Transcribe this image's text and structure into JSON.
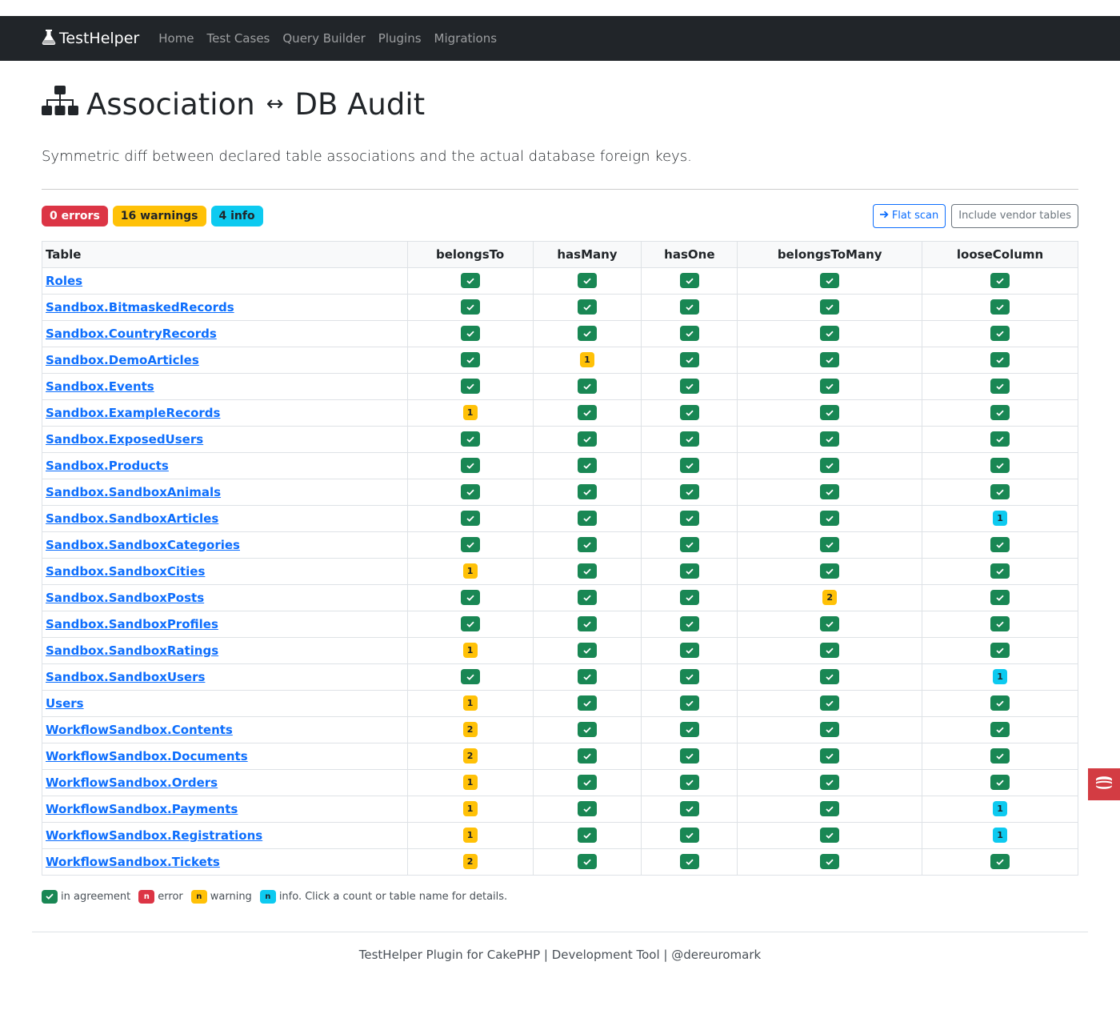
{
  "nav": {
    "brand": "TestHelper",
    "links": [
      "Home",
      "Test Cases",
      "Query Builder",
      "Plugins",
      "Migrations"
    ]
  },
  "header": {
    "title_left": "Association",
    "title_arrow": "↔",
    "title_right": "DB Audit",
    "lead": "Symmetric diff between declared table associations and the actual database foreign keys."
  },
  "summary": {
    "errors": "0 errors",
    "warnings": "16 warnings",
    "info": "4 info"
  },
  "buttons": {
    "flat_scan": "Flat scan",
    "vendor": "Include vendor tables"
  },
  "table": {
    "columns": [
      "Table",
      "belongsTo",
      "hasMany",
      "hasOne",
      "belongsToMany",
      "looseColumn"
    ],
    "rows": [
      {
        "name": "Roles",
        "cells": [
          "ok",
          "ok",
          "ok",
          "ok",
          "ok"
        ]
      },
      {
        "name": "Sandbox.BitmaskedRecords",
        "cells": [
          "ok",
          "ok",
          "ok",
          "ok",
          "ok"
        ]
      },
      {
        "name": "Sandbox.CountryRecords",
        "cells": [
          "ok",
          "ok",
          "ok",
          "ok",
          "ok"
        ]
      },
      {
        "name": "Sandbox.DemoArticles",
        "cells": [
          "ok",
          "w1",
          "ok",
          "ok",
          "ok"
        ]
      },
      {
        "name": "Sandbox.Events",
        "cells": [
          "ok",
          "ok",
          "ok",
          "ok",
          "ok"
        ]
      },
      {
        "name": "Sandbox.ExampleRecords",
        "cells": [
          "w1",
          "ok",
          "ok",
          "ok",
          "ok"
        ]
      },
      {
        "name": "Sandbox.ExposedUsers",
        "cells": [
          "ok",
          "ok",
          "ok",
          "ok",
          "ok"
        ]
      },
      {
        "name": "Sandbox.Products",
        "cells": [
          "ok",
          "ok",
          "ok",
          "ok",
          "ok"
        ]
      },
      {
        "name": "Sandbox.SandboxAnimals",
        "cells": [
          "ok",
          "ok",
          "ok",
          "ok",
          "ok"
        ]
      },
      {
        "name": "Sandbox.SandboxArticles",
        "cells": [
          "ok",
          "ok",
          "ok",
          "ok",
          "i1"
        ]
      },
      {
        "name": "Sandbox.SandboxCategories",
        "cells": [
          "ok",
          "ok",
          "ok",
          "ok",
          "ok"
        ]
      },
      {
        "name": "Sandbox.SandboxCities",
        "cells": [
          "w1",
          "ok",
          "ok",
          "ok",
          "ok"
        ]
      },
      {
        "name": "Sandbox.SandboxPosts",
        "cells": [
          "ok",
          "ok",
          "ok",
          "w2",
          "ok"
        ]
      },
      {
        "name": "Sandbox.SandboxProfiles",
        "cells": [
          "ok",
          "ok",
          "ok",
          "ok",
          "ok"
        ]
      },
      {
        "name": "Sandbox.SandboxRatings",
        "cells": [
          "w1",
          "ok",
          "ok",
          "ok",
          "ok"
        ]
      },
      {
        "name": "Sandbox.SandboxUsers",
        "cells": [
          "ok",
          "ok",
          "ok",
          "ok",
          "i1"
        ]
      },
      {
        "name": "Users",
        "cells": [
          "w1",
          "ok",
          "ok",
          "ok",
          "ok"
        ]
      },
      {
        "name": "WorkflowSandbox.Contents",
        "cells": [
          "w2",
          "ok",
          "ok",
          "ok",
          "ok"
        ]
      },
      {
        "name": "WorkflowSandbox.Documents",
        "cells": [
          "w2",
          "ok",
          "ok",
          "ok",
          "ok"
        ]
      },
      {
        "name": "WorkflowSandbox.Orders",
        "cells": [
          "w1",
          "ok",
          "ok",
          "ok",
          "ok"
        ]
      },
      {
        "name": "WorkflowSandbox.Payments",
        "cells": [
          "w1",
          "ok",
          "ok",
          "ok",
          "i1"
        ]
      },
      {
        "name": "WorkflowSandbox.Registrations",
        "cells": [
          "w1",
          "ok",
          "ok",
          "ok",
          "i1"
        ]
      },
      {
        "name": "WorkflowSandbox.Tickets",
        "cells": [
          "w2",
          "ok",
          "ok",
          "ok",
          "ok"
        ]
      }
    ]
  },
  "legend": {
    "n": "n",
    "agreement": "in agreement",
    "error": "error",
    "warning": "warning",
    "info": "info. Click a count or table name for details."
  },
  "footer": "TestHelper Plugin for CakePHP | Development Tool | @dereuromark",
  "colors": {
    "navbar": "#212529",
    "ok": "#198754",
    "warning": "#ffc107",
    "info": "#0dcaf0",
    "error": "#dc3545",
    "link": "#0d6efd",
    "side_tab": "#d33c43"
  }
}
